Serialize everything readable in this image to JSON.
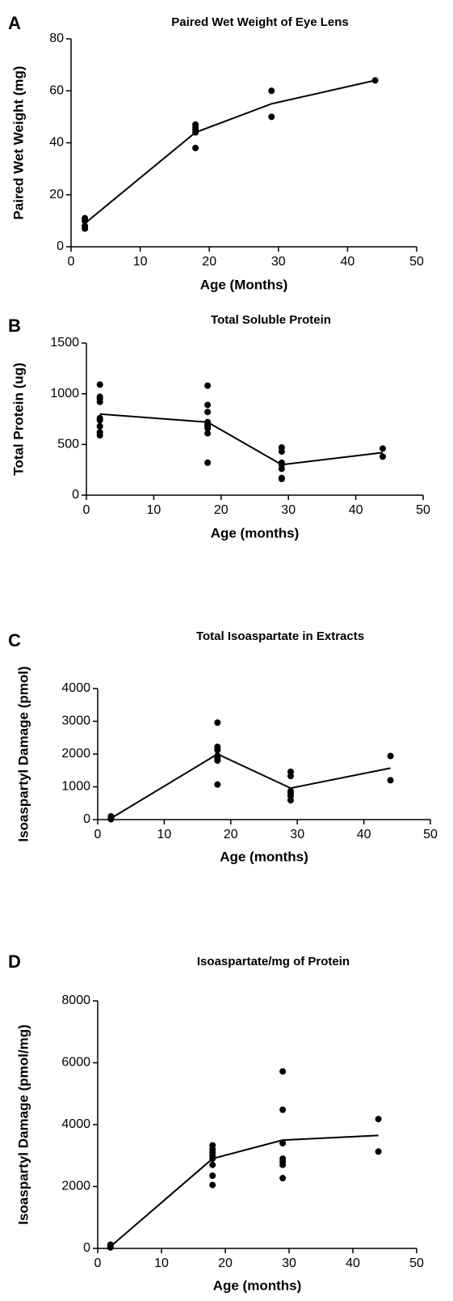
{
  "chart_data": [
    {
      "type": "scatter",
      "panel": "A",
      "title": "Paired Wet Weight of Eye Lens",
      "x_label": "Age (Months)",
      "y_label": "Paired Wet Weight (mg)",
      "xlim": [
        0,
        50
      ],
      "xticks": [
        0,
        10,
        20,
        30,
        40,
        50
      ],
      "ylim": [
        0,
        80
      ],
      "yticks": [
        0,
        20,
        40,
        60,
        80
      ],
      "series": [
        {
          "type": "scatter",
          "color": "#000000",
          "x": [
            2,
            2,
            2,
            2,
            18,
            18,
            18,
            18,
            18,
            29,
            29,
            44
          ],
          "values": [
            11,
            10,
            8,
            7,
            47,
            46,
            45,
            44,
            38,
            60,
            50,
            64
          ]
        },
        {
          "type": "line",
          "color": "#000000",
          "x": [
            2,
            18,
            29,
            44
          ],
          "values": [
            9,
            44,
            55,
            64
          ]
        }
      ]
    },
    {
      "type": "scatter",
      "panel": "B",
      "title": "Total Soluble Protein",
      "x_label": "Age (months)",
      "y_label": "Total Protein (ug)",
      "xlim": [
        0,
        50
      ],
      "xticks": [
        0,
        10,
        20,
        30,
        40,
        50
      ],
      "ylim": [
        0,
        1500
      ],
      "yticks": [
        0,
        500,
        1000,
        1500
      ],
      "series": [
        {
          "type": "scatter",
          "color": "#000000",
          "x": [
            2,
            2,
            2,
            2,
            2,
            2,
            2,
            2,
            2,
            18,
            18,
            18,
            18,
            18,
            18,
            18,
            18,
            18,
            29,
            29,
            29,
            29,
            29,
            29,
            29,
            44,
            44
          ],
          "values": [
            1090,
            970,
            950,
            920,
            760,
            740,
            680,
            620,
            590,
            1080,
            890,
            820,
            720,
            700,
            680,
            660,
            610,
            320,
            470,
            430,
            320,
            300,
            260,
            170,
            160,
            460,
            380
          ]
        },
        {
          "type": "line",
          "color": "#000000",
          "x": [
            2,
            18,
            29,
            44
          ],
          "values": [
            800,
            720,
            300,
            420
          ]
        }
      ]
    },
    {
      "type": "scatter",
      "panel": "C",
      "title": "Total Isoaspartate in Extracts",
      "x_label": "Age (months)",
      "y_label": "Isoaspartyl Damage (pmol)",
      "xlim": [
        0,
        50
      ],
      "xticks": [
        0,
        10,
        20,
        30,
        40,
        50
      ],
      "ylim": [
        0,
        4000
      ],
      "yticks": [
        0,
        1000,
        2000,
        3000,
        4000
      ],
      "series": [
        {
          "type": "scatter",
          "color": "#000000",
          "x": [
            2,
            2,
            2,
            2,
            18,
            18,
            18,
            18,
            18,
            18,
            18,
            18,
            18,
            29,
            29,
            29,
            29,
            29,
            29,
            44,
            44
          ],
          "values": [
            100,
            60,
            30,
            10,
            2960,
            2220,
            2150,
            2120,
            1950,
            1900,
            1850,
            1800,
            1070,
            1460,
            1330,
            870,
            800,
            720,
            590,
            1940,
            1200
          ]
        },
        {
          "type": "line",
          "color": "#000000",
          "x": [
            2,
            18,
            29,
            44
          ],
          "values": [
            40,
            2000,
            960,
            1570
          ]
        }
      ]
    },
    {
      "type": "scatter",
      "panel": "D",
      "title": "Isoaspartate/mg of Protein",
      "x_label": "Age (months)",
      "y_label": "Isoaspartyl Damage (pmol/mg)",
      "xlim": [
        0,
        50
      ],
      "xticks": [
        0,
        10,
        20,
        30,
        40,
        50
      ],
      "ylim": [
        0,
        8000
      ],
      "yticks": [
        0,
        2000,
        4000,
        6000,
        8000
      ],
      "series": [
        {
          "type": "scatter",
          "color": "#000000",
          "x": [
            2,
            2,
            2,
            18,
            18,
            18,
            18,
            18,
            18,
            18,
            18,
            29,
            29,
            29,
            29,
            29,
            29,
            29,
            44,
            44
          ],
          "values": [
            120,
            60,
            30,
            3330,
            3200,
            3100,
            3000,
            2900,
            2700,
            2350,
            2050,
            5720,
            4480,
            3400,
            2900,
            2800,
            2700,
            2270,
            4180,
            3130
          ]
        },
        {
          "type": "line",
          "color": "#000000",
          "x": [
            2,
            18,
            29,
            44
          ],
          "values": [
            60,
            2900,
            3500,
            3650
          ]
        }
      ]
    }
  ]
}
